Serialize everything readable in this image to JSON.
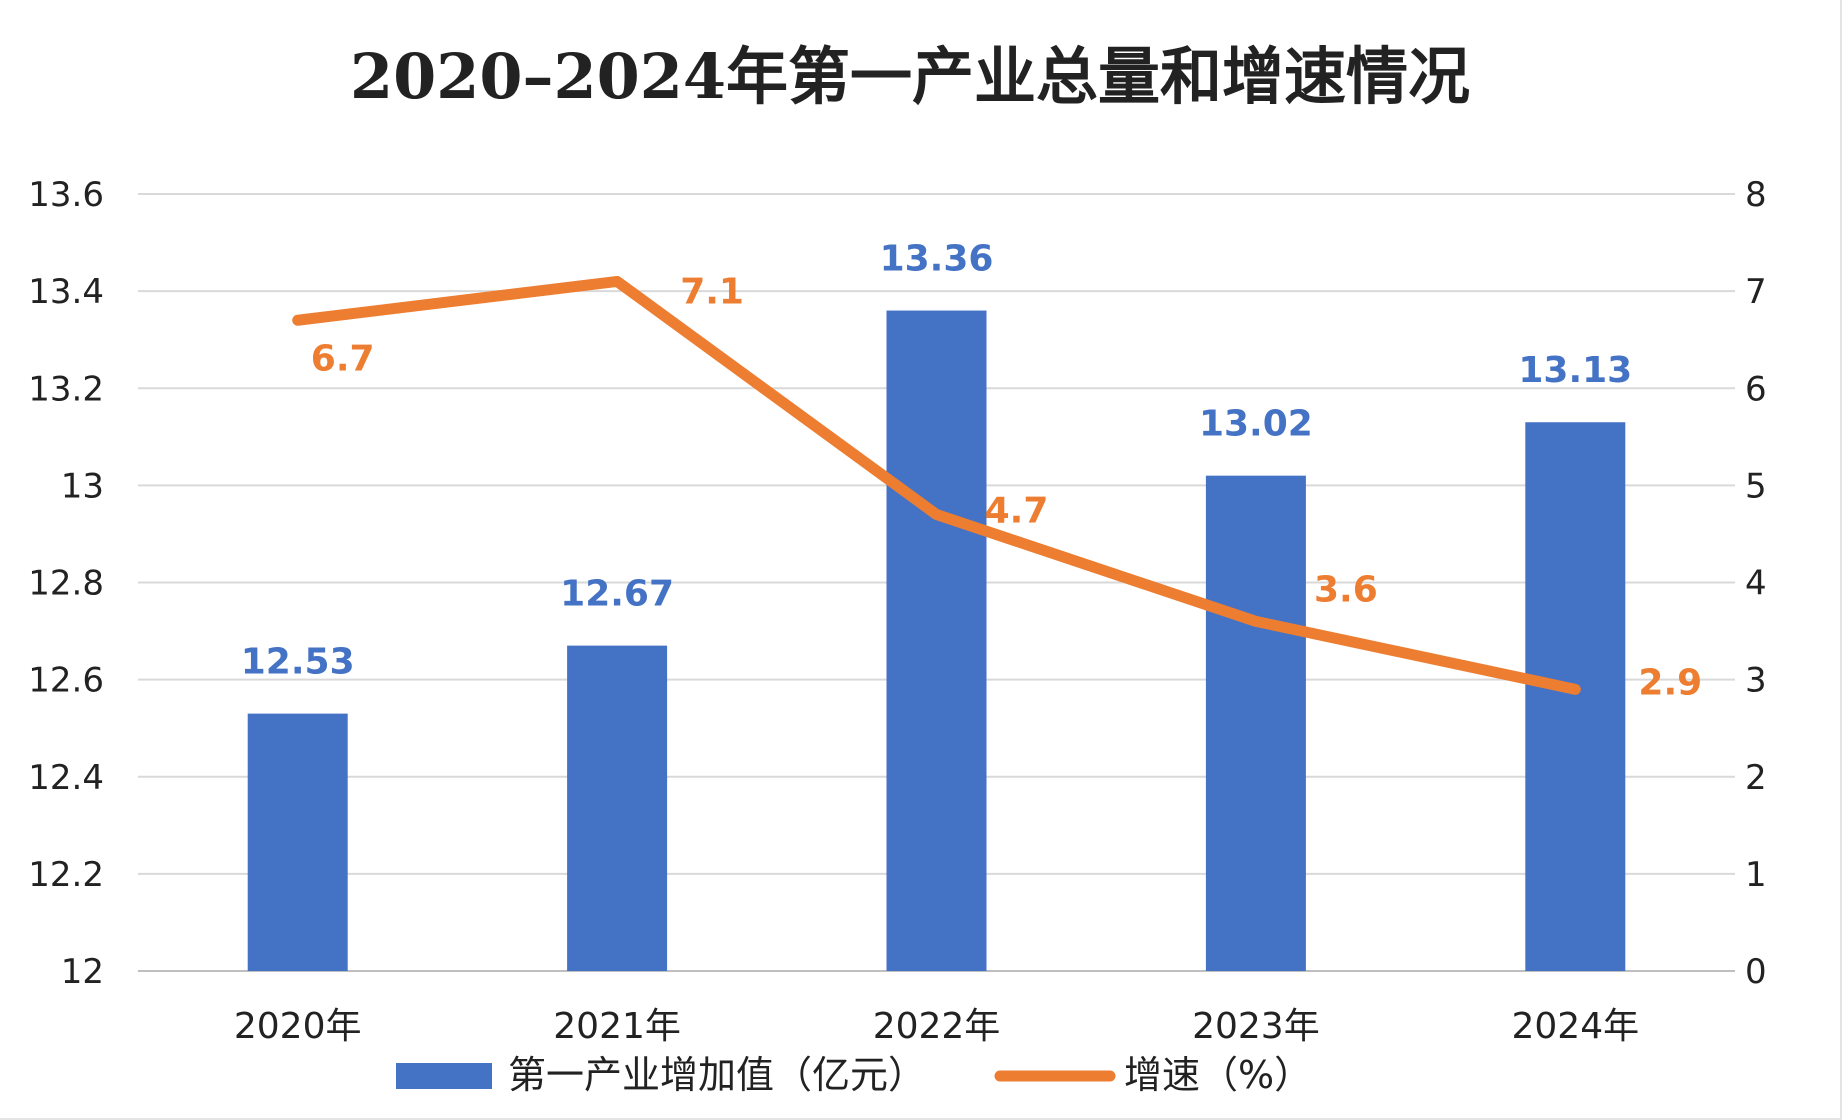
{
  "chart_data": {
    "type": "bar",
    "title": "2020–2024年第一产业总量和增速情况",
    "categories": [
      "2020年",
      "2021年",
      "2022年",
      "2023年",
      "2024年"
    ],
    "series": [
      {
        "name": "第一产业增加值（亿元）",
        "type": "bar",
        "axis": "left",
        "values": [
          12.53,
          12.67,
          13.36,
          13.02,
          13.13
        ],
        "labels": [
          "12.53",
          "12.67",
          "13.36",
          "13.02",
          "13.13"
        ],
        "color": "#4472C4",
        "label_color": "#4472C4"
      },
      {
        "name": "增速（%）",
        "type": "line",
        "axis": "right",
        "values": [
          6.7,
          7.1,
          4.7,
          3.6,
          2.9
        ],
        "labels": [
          "6.7",
          "7.1",
          "4.7",
          "3.6",
          "2.9"
        ],
        "color": "#ED7D31",
        "label_color": "#ED7D31"
      }
    ],
    "y_left": {
      "ylim": [
        12,
        13.6
      ],
      "ticks": [
        12,
        12.2,
        12.4,
        12.6,
        12.8,
        13,
        13.2,
        13.4,
        13.6
      ],
      "tick_labels": [
        "12",
        "12.2",
        "12.4",
        "12.6",
        "12.8",
        "13",
        "13.2",
        "13.4",
        "13.6"
      ]
    },
    "y_right": {
      "ylim": [
        0,
        8
      ],
      "ticks": [
        0,
        1,
        2,
        3,
        4,
        5,
        6,
        7,
        8
      ],
      "tick_labels": [
        "0",
        "1",
        "2",
        "3",
        "4",
        "5",
        "6",
        "7",
        "8"
      ]
    },
    "grid": true,
    "gridline_color": "#d9d9d9",
    "legend_position": "bottom",
    "xlabel": "",
    "ylabel": ""
  }
}
